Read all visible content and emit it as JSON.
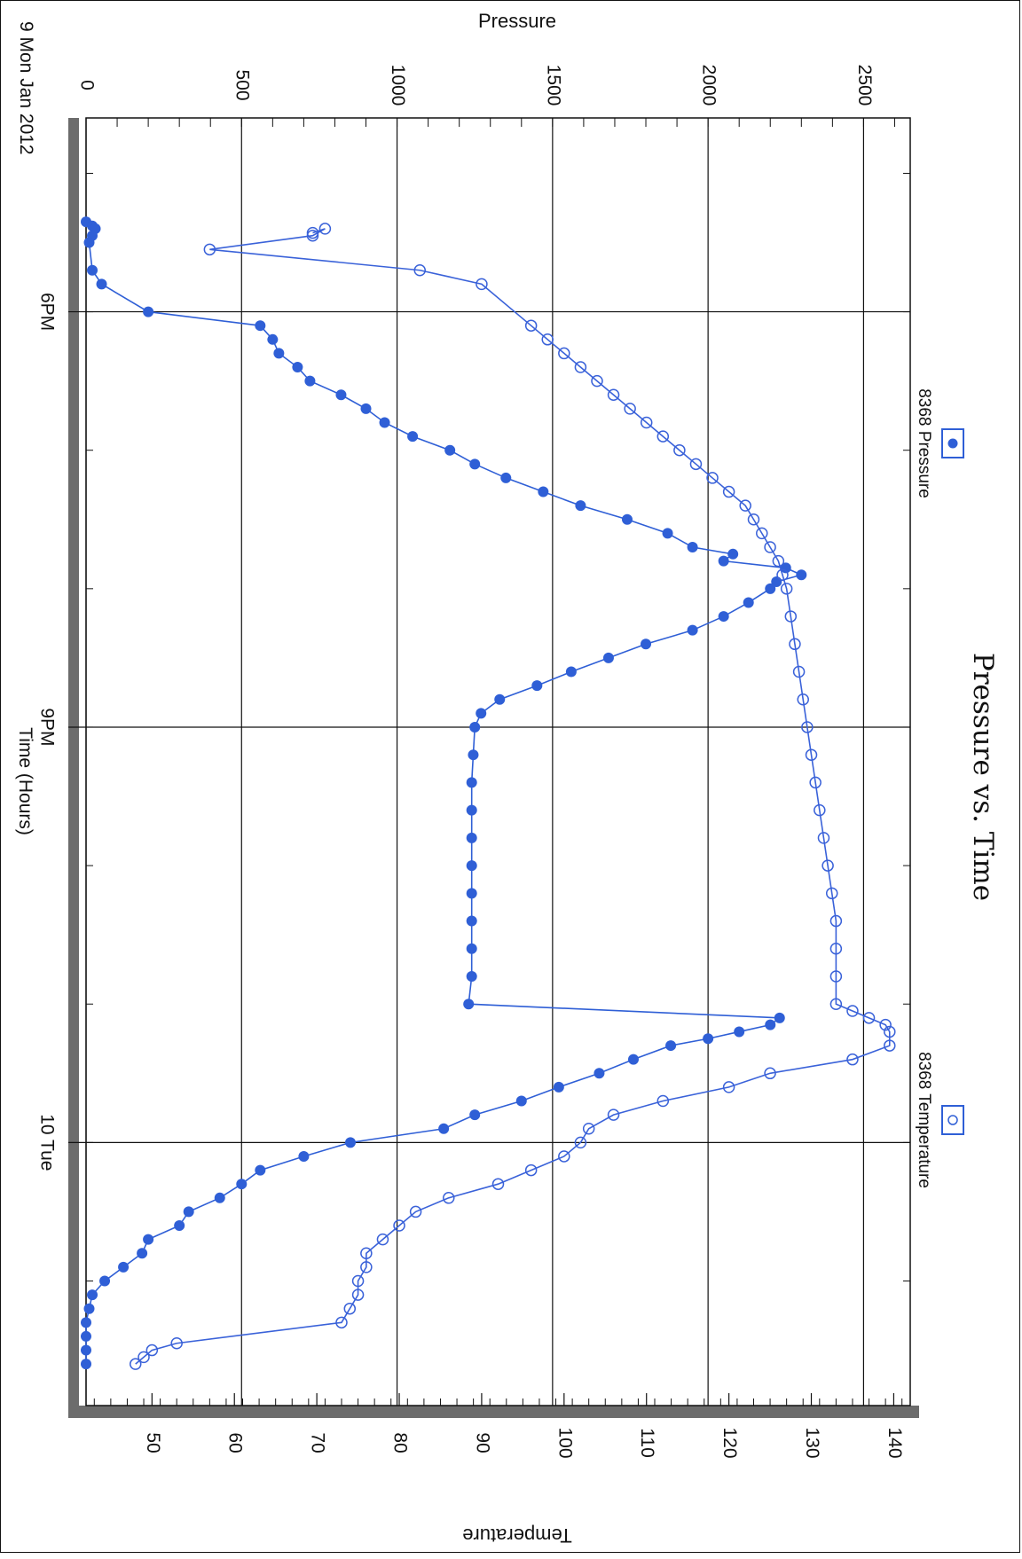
{
  "chart_data": {
    "type": "line",
    "title": "Pressure vs. Time",
    "xlabel": "Time (Hours)",
    "y1label": "Pressure",
    "y2label": "Temperature",
    "date_label": "9 Mon Jan 2012",
    "x_ticks": [
      {
        "h": 18,
        "label": "6PM"
      },
      {
        "h": 21,
        "label": "9PM"
      },
      {
        "h": 24,
        "label": "10 Tue"
      }
    ],
    "xlim_hours": [
      16.6,
      25.9
    ],
    "y1lim": [
      0,
      2650
    ],
    "y1_ticks": [
      0,
      500,
      1000,
      1500,
      2000,
      2500
    ],
    "y2lim": [
      42,
      142
    ],
    "y2_ticks": [
      50,
      60,
      70,
      80,
      90,
      100,
      110,
      120,
      130,
      140
    ],
    "legend": [
      {
        "name": "8368 Pressure",
        "marker": "filled"
      },
      {
        "name": "8368 Temperature",
        "marker": "open"
      }
    ],
    "colors": {
      "pressure": "#2f5fd6",
      "temperature": "#3a62d9",
      "frame": "#6c6c6c"
    },
    "series": [
      {
        "name": "8368 Pressure",
        "axis": "pressure",
        "marker": "filled",
        "x": [
          17.35,
          17.38,
          17.4,
          17.45,
          17.5,
          17.7,
          17.8,
          18.0,
          18.1,
          18.2,
          18.3,
          18.4,
          18.5,
          18.6,
          18.7,
          18.8,
          18.9,
          19.0,
          19.1,
          19.2,
          19.3,
          19.4,
          19.5,
          19.6,
          19.7,
          19.75,
          19.8,
          19.85,
          19.9,
          19.95,
          20.0,
          20.1,
          20.2,
          20.3,
          20.4,
          20.5,
          20.6,
          20.7,
          20.8,
          20.9,
          21.0,
          21.2,
          21.4,
          21.6,
          21.8,
          22.0,
          22.2,
          22.4,
          22.6,
          22.8,
          23.0,
          23.1,
          23.15,
          23.2,
          23.25,
          23.3,
          23.4,
          23.5,
          23.6,
          23.7,
          23.8,
          23.9,
          24.0,
          24.1,
          24.2,
          24.3,
          24.4,
          24.5,
          24.6,
          24.7,
          24.8,
          24.9,
          25.0,
          25.1,
          25.2,
          25.3,
          25.4,
          25.5,
          25.6
        ],
        "y": [
          0,
          20,
          30,
          20,
          10,
          20,
          50,
          200,
          560,
          600,
          620,
          680,
          720,
          820,
          900,
          960,
          1050,
          1170,
          1250,
          1350,
          1470,
          1590,
          1740,
          1870,
          1950,
          2080,
          2050,
          2250,
          2300,
          2220,
          2200,
          2130,
          2050,
          1950,
          1800,
          1680,
          1560,
          1450,
          1330,
          1270,
          1250,
          1245,
          1240,
          1240,
          1240,
          1240,
          1240,
          1240,
          1240,
          1240,
          1230,
          2230,
          2200,
          2100,
          2000,
          1880,
          1760,
          1650,
          1520,
          1400,
          1250,
          1150,
          850,
          700,
          560,
          500,
          430,
          330,
          300,
          200,
          180,
          120,
          60,
          20,
          10,
          0,
          0,
          0,
          0
        ]
      },
      {
        "name": "8368 Temperature",
        "axis": "temperature",
        "marker": "open",
        "x": [
          17.43,
          17.4,
          17.45,
          17.55,
          17.7,
          17.8,
          18.1,
          18.2,
          18.3,
          18.4,
          18.5,
          18.6,
          18.7,
          18.8,
          18.9,
          19.0,
          19.1,
          19.2,
          19.3,
          19.4,
          19.5,
          19.6,
          19.7,
          19.8,
          19.9,
          20.0,
          20.2,
          20.4,
          20.6,
          20.8,
          21.0,
          21.2,
          21.4,
          21.6,
          21.8,
          22.0,
          22.2,
          22.4,
          22.6,
          22.8,
          23.0,
          23.05,
          23.1,
          23.15,
          23.2,
          23.3,
          23.4,
          23.5,
          23.6,
          23.7,
          23.8,
          23.9,
          24.0,
          24.1,
          24.2,
          24.3,
          24.4,
          24.5,
          24.6,
          24.7,
          24.8,
          24.9,
          25.0,
          25.1,
          25.2,
          25.3,
          25.45,
          25.5,
          25.55,
          25.6
        ],
        "y": [
          69.5,
          71,
          69.5,
          57,
          82.5,
          90,
          96,
          98,
          100,
          102,
          104,
          106,
          108,
          110,
          112,
          114,
          116,
          118,
          120,
          122,
          123,
          124,
          125,
          126,
          126.5,
          127,
          127.5,
          128,
          128.5,
          129,
          129.5,
          130,
          130.5,
          131,
          131.5,
          132,
          132.5,
          133,
          133,
          133,
          133,
          135,
          137,
          139,
          139.5,
          139.5,
          135,
          125,
          120,
          112,
          106,
          103,
          102,
          100,
          96,
          92,
          86,
          82,
          80,
          78,
          76,
          76,
          75,
          75,
          74,
          73,
          53,
          50,
          49,
          48
        ]
      }
    ]
  }
}
